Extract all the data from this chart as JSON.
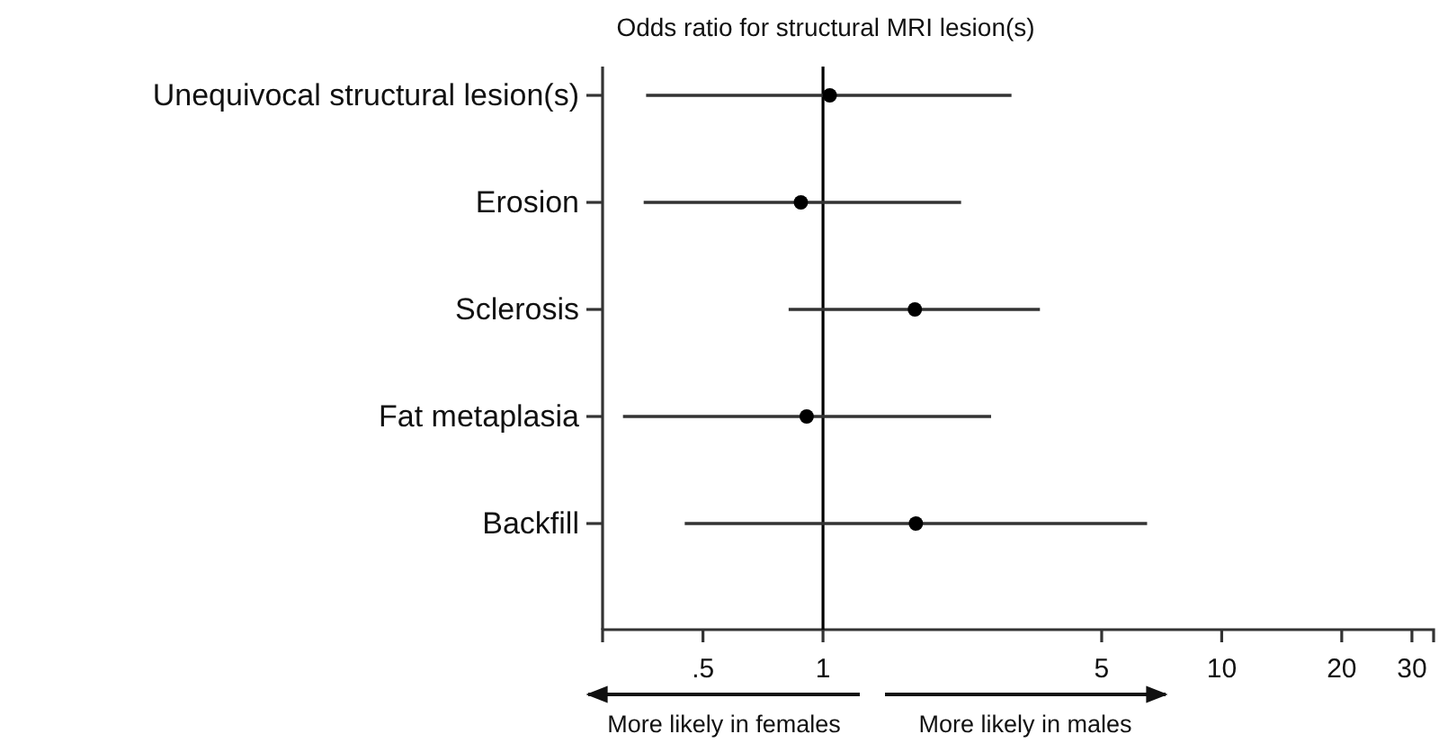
{
  "chart_data": {
    "type": "scatter",
    "orientation": "horizontal",
    "title": "Odds ratio for structural MRI lesion(s)",
    "categories": [
      "Unequivocal structural lesion(s)",
      "Erosion",
      "Sclerosis",
      "Fat metaplasia",
      "Backfill"
    ],
    "values": [
      1.04,
      0.88,
      1.7,
      0.91,
      1.71
    ],
    "errors": [
      [
        0.36,
        2.97
      ],
      [
        0.355,
        2.22
      ],
      [
        0.82,
        3.5
      ],
      [
        0.315,
        2.64
      ],
      [
        0.45,
        6.5
      ]
    ],
    "color": "#000000",
    "marker": "circle",
    "log": "x",
    "grid": false,
    "xlim": [
      0.28,
      34
    ],
    "xticks": [
      {
        "value": 0.5,
        "label": ".5"
      },
      1,
      5,
      10,
      20,
      30
    ],
    "ref_lines": [
      {
        "axis": "x",
        "value": 1,
        "label": null,
        "color": "#000000"
      }
    ],
    "annotations": [
      "More likely in females",
      "More likely in males"
    ]
  }
}
